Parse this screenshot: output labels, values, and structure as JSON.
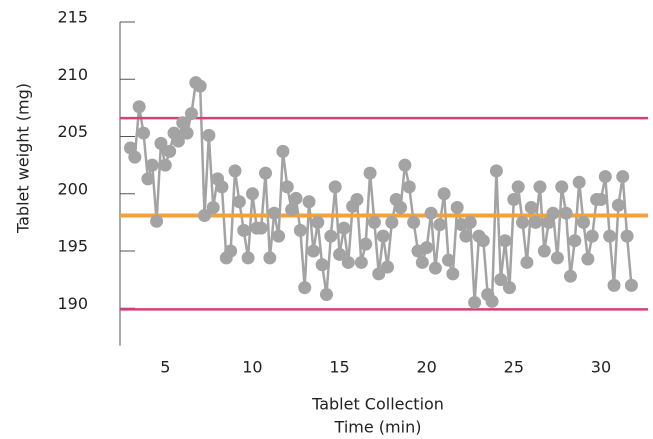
{
  "chart_data": {
    "type": "line",
    "ylabel": "Tablet weight (mg)",
    "xlabel": [
      "Tablet Collection",
      "Time (min)"
    ],
    "xlim": [
      2.4,
      32.7
    ],
    "xticks": [
      5,
      10,
      15,
      20,
      25,
      30
    ],
    "ylim": [
      187,
      215
    ],
    "yticks": [
      190,
      195,
      200,
      205,
      210,
      215
    ],
    "hlines": [
      {
        "value": 206.6,
        "color": "#d6407a"
      },
      {
        "value": 198.1,
        "color": "#f2a23a"
      },
      {
        "value": 189.9,
        "color": "#d6407a"
      }
    ],
    "series": [
      {
        "color": "#a3a3a3",
        "x": [
          3,
          3.25,
          3.5,
          3.75,
          4,
          4.25,
          4.5,
          4.75,
          5,
          5.25,
          5.5,
          5.75,
          6,
          6.25,
          6.5,
          6.75,
          7,
          7.25,
          7.5,
          7.75,
          8,
          8.25,
          8.5,
          8.75,
          9,
          9.25,
          9.5,
          9.75,
          10,
          10.25,
          10.5,
          10.75,
          11,
          11.25,
          11.5,
          11.75,
          12,
          12.25,
          12.5,
          12.75,
          13,
          13.25,
          13.5,
          13.75,
          14,
          14.25,
          14.5,
          14.75,
          15,
          15.25,
          15.5,
          15.75,
          16,
          16.25,
          16.5,
          16.75,
          17,
          17.25,
          17.5,
          17.75,
          18,
          18.25,
          18.5,
          18.75,
          19,
          19.25,
          19.5,
          19.75,
          20,
          20.25,
          20.5,
          20.75,
          21,
          21.25,
          21.5,
          21.75,
          22,
          22.25,
          22.5,
          22.75,
          23,
          23.25,
          23.5,
          23.75,
          24,
          24.25,
          24.5,
          24.75,
          25,
          25.25,
          25.5,
          25.75,
          26,
          26.25,
          26.5,
          26.75,
          27,
          27.25,
          27.5,
          27.75,
          28,
          28.25,
          28.5,
          28.75,
          29,
          29.25,
          29.5,
          29.75,
          30,
          30.25,
          30.5,
          30.75,
          31,
          31.25,
          31.5,
          31.75
        ],
        "values": [
          204.0,
          203.2,
          207.6,
          205.3,
          201.3,
          202.5,
          197.6,
          204.4,
          202.5,
          203.7,
          205.3,
          204.6,
          206.2,
          205.3,
          207.0,
          209.7,
          209.4,
          198.1,
          205.1,
          198.8,
          201.3,
          200.6,
          194.4,
          195.0,
          202.0,
          199.3,
          196.8,
          194.4,
          200.0,
          197.0,
          197.0,
          201.8,
          194.4,
          198.3,
          196.3,
          203.7,
          200.6,
          198.6,
          199.6,
          196.8,
          191.8,
          199.3,
          195.0,
          197.5,
          193.8,
          191.2,
          196.3,
          200.6,
          194.7,
          197.0,
          194.0,
          198.9,
          199.5,
          194.0,
          195.6,
          201.8,
          197.5,
          193.0,
          196.3,
          193.6,
          197.5,
          199.5,
          198.8,
          202.5,
          200.6,
          197.5,
          195.0,
          194.0,
          195.3,
          198.3,
          193.5,
          197.3,
          200.0,
          194.2,
          193.0,
          198.8,
          197.3,
          196.3,
          197.5,
          190.5,
          196.3,
          195.9,
          191.2,
          190.6,
          202.0,
          192.5,
          195.9,
          191.8,
          199.5,
          200.6,
          197.5,
          194.0,
          198.8,
          197.5,
          200.6,
          195.0,
          197.5,
          198.3,
          194.4,
          200.6,
          198.3,
          192.8,
          195.9,
          201.0,
          197.5,
          194.3,
          196.3,
          199.5,
          199.5,
          201.5,
          196.3,
          192.0,
          199.0,
          201.5,
          196.3,
          192.0
        ]
      }
    ]
  }
}
